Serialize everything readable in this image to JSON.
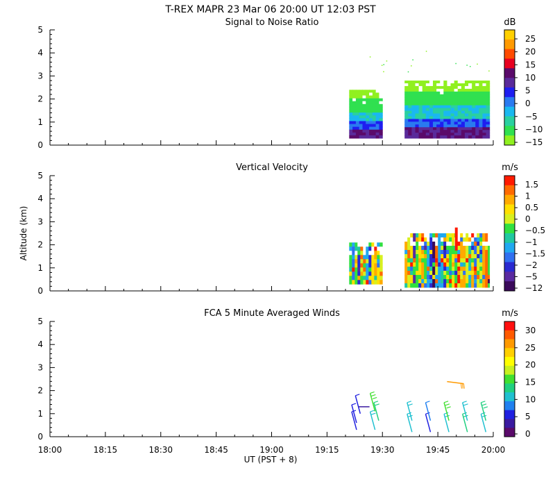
{
  "figure": {
    "title": "T-REX   MAPR 23 Mar 06   20:00 UT   12:03   PST",
    "xlabel": "UT  (PST + 8)",
    "ylabel": "Altitude (km)"
  },
  "chart_data": [
    {
      "type": "heatmap",
      "title": "Signal to Noise Ratio",
      "unit": "dB",
      "x_range": [
        "18:00",
        "20:00"
      ],
      "x_ticks": [
        "18:00",
        "18:15",
        "18:30",
        "18:45",
        "19:00",
        "19:15",
        "19:30",
        "19:45",
        "20:00"
      ],
      "ylim": [
        0,
        5
      ],
      "y_ticks": [
        0,
        1,
        2,
        3,
        4,
        5
      ],
      "colorbar": {
        "labels": [
          "25",
          "20",
          "15",
          "10",
          "5",
          "0",
          "−5",
          "−10",
          "−15"
        ],
        "colors": [
          "#ffd000",
          "#ff9a00",
          "#ff4b00",
          "#e80020",
          "#5a0a6a",
          "#5a2a9a",
          "#1e1ef0",
          "#2a7af0",
          "#1ab8f0",
          "#2ad0a0",
          "#30e050",
          "#90f020"
        ]
      },
      "data_segments": [
        {
          "start": "19:21",
          "end": "19:30",
          "top_km": 2.4,
          "bottom_km": 0.3
        },
        {
          "start": "19:36",
          "end": "19:59",
          "top_km": 2.8,
          "bottom_km": 0.3
        }
      ]
    },
    {
      "type": "heatmap",
      "title": "Vertical Velocity",
      "unit": "m/s",
      "x_range": [
        "18:00",
        "20:00"
      ],
      "x_ticks": [
        "18:00",
        "18:15",
        "18:30",
        "18:45",
        "19:00",
        "19:15",
        "19:30",
        "19:45",
        "20:00"
      ],
      "ylim": [
        0,
        5
      ],
      "y_ticks": [
        0,
        1,
        2,
        3,
        4,
        5
      ],
      "colorbar": {
        "labels": [
          "1.5",
          "1",
          "0.5",
          "0",
          "−0.5",
          "−1",
          "−1.5",
          "−2",
          "−5",
          "−12"
        ],
        "colors": [
          "#ff1a00",
          "#ff6a00",
          "#ffaa00",
          "#ffe000",
          "#d8f020",
          "#30e040",
          "#20c8a0",
          "#20a8f0",
          "#3070f0",
          "#2a2ad0",
          "#5a2aa0",
          "#3a0a5a"
        ]
      },
      "data_segments": [
        {
          "start": "19:21",
          "end": "19:30",
          "top_km": 2.1,
          "bottom_km": 0.3
        },
        {
          "start": "19:36",
          "end": "19:59",
          "top_km": 2.5,
          "bottom_km": 0.3
        }
      ]
    },
    {
      "type": "scatter",
      "title": "FCA 5 Minute Averaged Winds",
      "unit": "m/s",
      "x_range": [
        "18:00",
        "20:00"
      ],
      "x_ticks": [
        "18:00",
        "18:15",
        "18:30",
        "18:45",
        "19:00",
        "19:15",
        "19:30",
        "19:45",
        "20:00"
      ],
      "ylim": [
        0,
        5
      ],
      "y_ticks": [
        0,
        1,
        2,
        3,
        4,
        5
      ],
      "colorbar": {
        "labels": [
          "30",
          "25",
          "20",
          "15",
          "10",
          "5",
          "0"
        ],
        "colors": [
          "#ff1010",
          "#ff5a00",
          "#ff9a00",
          "#ffd000",
          "#ffff00",
          "#c8f020",
          "#40e030",
          "#20d080",
          "#20c0d0",
          "#2080f0",
          "#2020e0",
          "#3a1aa0",
          "#5a0a6a"
        ]
      },
      "barbs": [
        {
          "time": "19:23",
          "alt_km": 0.3,
          "speed": 5
        },
        {
          "time": "19:23",
          "alt_km": 0.6,
          "speed": 4
        },
        {
          "time": "19:24",
          "alt_km": 1.0,
          "speed": 6
        },
        {
          "time": "19:25",
          "alt_km": 1.3,
          "speed": 2
        },
        {
          "time": "19:28",
          "alt_km": 0.3,
          "speed": 10
        },
        {
          "time": "19:29",
          "alt_km": 0.7,
          "speed": 12
        },
        {
          "time": "19:28",
          "alt_km": 1.1,
          "speed": 14
        },
        {
          "time": "19:38",
          "alt_km": 0.2,
          "speed": 9
        },
        {
          "time": "19:38",
          "alt_km": 0.7,
          "speed": 10
        },
        {
          "time": "19:43",
          "alt_km": 0.2,
          "speed": 4
        },
        {
          "time": "19:43",
          "alt_km": 0.7,
          "speed": 7
        },
        {
          "time": "19:48",
          "alt_km": 0.2,
          "speed": 9
        },
        {
          "time": "19:48",
          "alt_km": 0.7,
          "speed": 15
        },
        {
          "time": "19:53",
          "alt_km": 0.2,
          "speed": 12
        },
        {
          "time": "19:53",
          "alt_km": 0.7,
          "speed": 11
        },
        {
          "time": "19:58",
          "alt_km": 0.2,
          "speed": 11
        },
        {
          "time": "19:58",
          "alt_km": 0.7,
          "speed": 13
        },
        {
          "time": "19:52",
          "alt_km": 2.3,
          "speed": 25
        }
      ]
    }
  ]
}
